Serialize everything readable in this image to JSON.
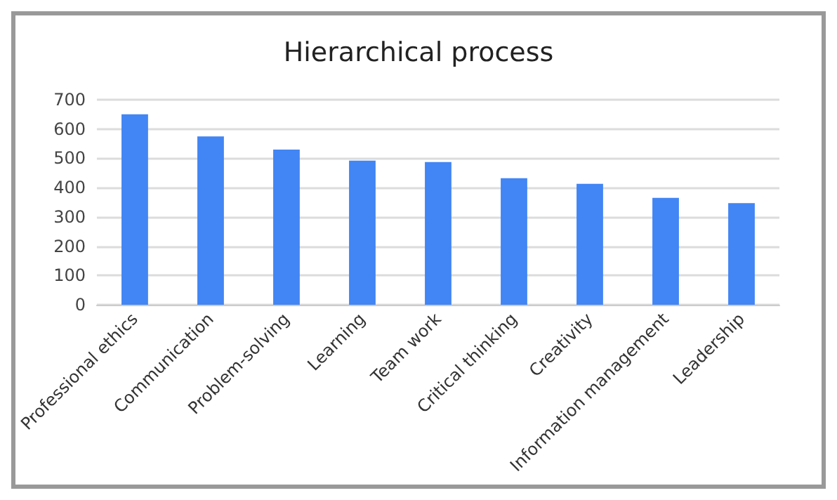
{
  "chart_data": {
    "type": "bar",
    "title": "Hierarchical process",
    "categories": [
      "Professional ethics",
      "Communication",
      "Problem-solving",
      "Learning",
      "Team work",
      "Critical thinking",
      "Creativity",
      "Information management",
      "Leadership"
    ],
    "values": [
      650,
      575,
      530,
      492,
      487,
      432,
      413,
      365,
      347
    ],
    "color": "#4285f4",
    "ylim": [
      0,
      700
    ],
    "yticks": [
      0,
      100,
      200,
      300,
      400,
      500,
      600,
      700
    ],
    "grid": true
  }
}
